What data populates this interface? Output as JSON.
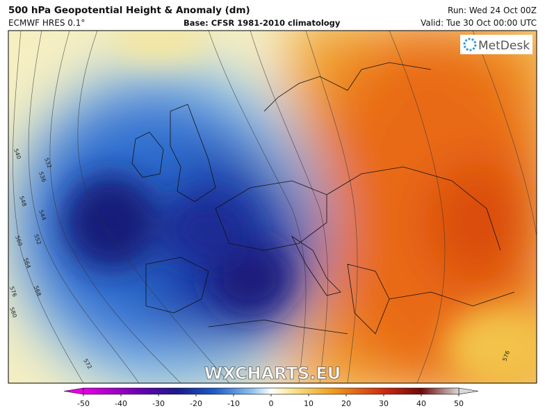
{
  "header": {
    "title": "500 hPa Geopotential Height & Anomaly (dm)",
    "model": "ECMWF HRES 0.1°",
    "base": "Base: CFSR 1981-2010 climatology",
    "run": "Run: Wed 24 Oct 00Z",
    "valid": "Valid: Tue 30 Oct 00:00 UTC"
  },
  "logo": "MetDesk",
  "watermark": "WXCHARTS.EU",
  "contour_labels": [
    540,
    532,
    536,
    548,
    544,
    560,
    552,
    564,
    568,
    576,
    580,
    572,
    576
  ],
  "colorbar": {
    "ticks": [
      -50,
      -40,
      -30,
      -20,
      -10,
      0,
      10,
      20,
      30,
      40,
      50
    ],
    "range": [
      -50,
      50
    ]
  }
}
